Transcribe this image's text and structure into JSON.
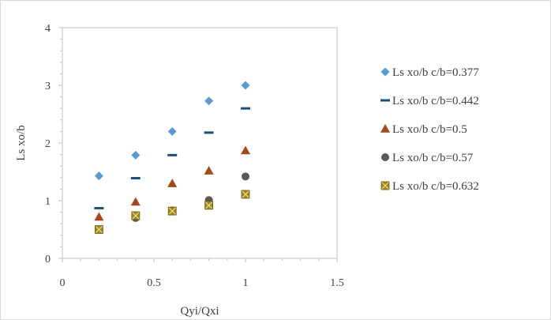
{
  "chart_data": {
    "type": "scatter",
    "title": "",
    "xlabel": "Qyi/Qxi",
    "ylabel": "Ls xo/b",
    "xlim": [
      0,
      1.5
    ],
    "ylim": [
      0,
      4
    ],
    "x_ticks": [
      "0",
      "0.5",
      "1",
      "1.5"
    ],
    "y_ticks": [
      "0",
      "1",
      "2",
      "3",
      "4"
    ],
    "grid": false,
    "legend_position": "right",
    "series": [
      {
        "name": "Ls xo/b  c/b=0.377",
        "marker": "diamond",
        "color": "#5b9bd5",
        "x": [
          0.2,
          0.4,
          0.6,
          0.8,
          1.0
        ],
        "y": [
          1.43,
          1.79,
          2.2,
          2.73,
          3.0
        ]
      },
      {
        "name": "Ls xo/b  c/b=0.442",
        "marker": "dash",
        "color": "#1f4e79",
        "x": [
          0.2,
          0.4,
          0.6,
          0.8,
          1.0
        ],
        "y": [
          0.87,
          1.39,
          1.79,
          2.18,
          2.6
        ]
      },
      {
        "name": "Ls xo/b  c/b=0.5",
        "marker": "triangle",
        "color": "#a5481c",
        "x": [
          0.2,
          0.4,
          0.6,
          0.8,
          1.0
        ],
        "y": [
          0.72,
          0.98,
          1.3,
          1.52,
          1.87
        ]
      },
      {
        "name": "Ls xo/b  c/b=0.57",
        "marker": "circle",
        "color": "#595959",
        "x": [
          0.2,
          0.4,
          0.6,
          0.8,
          1.0
        ],
        "y": [
          0.5,
          0.7,
          0.83,
          1.01,
          1.42
        ]
      },
      {
        "name": "Ls xo/b  c/b=0.632",
        "marker": "boxx",
        "color": "#a08a1c",
        "x": [
          0.2,
          0.4,
          0.6,
          0.8,
          1.0
        ],
        "y": [
          0.5,
          0.74,
          0.82,
          0.92,
          1.11
        ]
      }
    ]
  }
}
